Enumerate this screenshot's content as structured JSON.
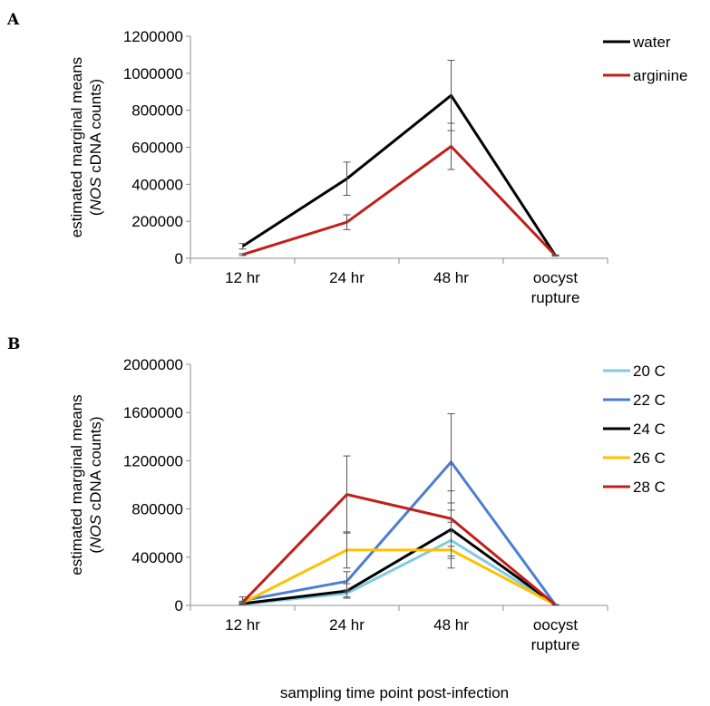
{
  "chart_data": [
    {
      "type": "line",
      "panel": "A",
      "categories": [
        "12 hr",
        "24 hr",
        "48 hr",
        "oocyst rupture"
      ],
      "category_lines": [
        [
          "12 hr"
        ],
        [
          "24 hr"
        ],
        [
          "48 hr"
        ],
        [
          "oocyst",
          "rupture"
        ]
      ],
      "ylabel_lines": [
        "estimated marginal means",
        "(NOS cDNA counts)"
      ],
      "ylim": [
        0,
        1200000
      ],
      "yticks": [
        "0",
        "200000",
        "400000",
        "600000",
        "800000",
        "1000000",
        "1200000"
      ],
      "legend_position": "top-right",
      "series": [
        {
          "name": "water",
          "color": "#000000",
          "values": [
            65000,
            430000,
            880000,
            15000
          ],
          "err": [
            15000,
            90000,
            190000,
            3000
          ]
        },
        {
          "name": "arginine",
          "color": "#c0201b",
          "values": [
            20000,
            195000,
            605000,
            15000
          ],
          "err": [
            5000,
            40000,
            125000,
            3000
          ]
        }
      ]
    },
    {
      "type": "line",
      "panel": "B",
      "categories": [
        "12 hr",
        "24 hr",
        "48 hr",
        "oocyst rupture"
      ],
      "category_lines": [
        [
          "12 hr"
        ],
        [
          "24 hr"
        ],
        [
          "48 hr"
        ],
        [
          "oocyst",
          "rupture"
        ]
      ],
      "ylabel_lines": [
        "estimated marginal means",
        "(NOS cDNA counts)"
      ],
      "xlabel": "sampling time point post-infection",
      "ylim": [
        0,
        2000000
      ],
      "yticks": [
        "0",
        "400000",
        "800000",
        "1200000",
        "1600000",
        "2000000"
      ],
      "legend_position": "top-right",
      "series": [
        {
          "name": "20 C",
          "color": "#7fcbe0",
          "values": [
            10000,
            100000,
            540000,
            5000
          ],
          "err": [
            5000,
            30000,
            150000,
            2000
          ]
        },
        {
          "name": "22 C",
          "color": "#4a7fd0",
          "values": [
            40000,
            200000,
            1190000,
            5000
          ],
          "err": [
            30000,
            80000,
            400000,
            2000
          ]
        },
        {
          "name": "24 C",
          "color": "#000000",
          "values": [
            15000,
            120000,
            630000,
            5000
          ],
          "err": [
            5000,
            60000,
            220000,
            2000
          ]
        },
        {
          "name": "26 C",
          "color": "#ffc000",
          "values": [
            20000,
            460000,
            460000,
            5000
          ],
          "err": [
            10000,
            150000,
            150000,
            2000
          ]
        },
        {
          "name": "28 C",
          "color": "#c0201b",
          "values": [
            25000,
            920000,
            720000,
            5000
          ],
          "err": [
            10000,
            320000,
            230000,
            2000
          ]
        }
      ]
    }
  ],
  "panel_letters": [
    "A",
    "B"
  ]
}
